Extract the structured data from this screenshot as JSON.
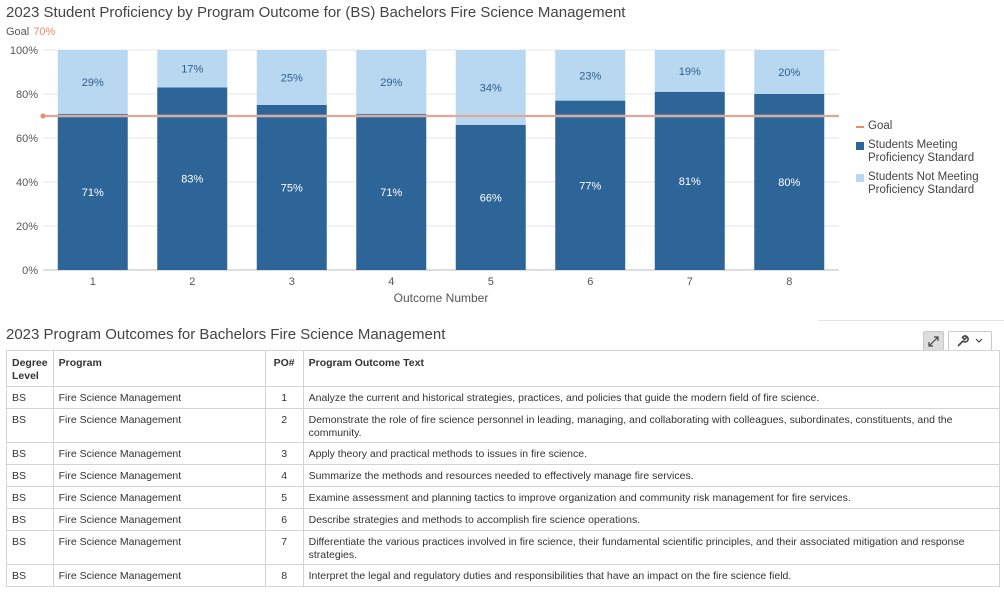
{
  "chart_title": "2023 Student Proficiency by Program Outcome for (BS) Bachelors Fire Science Management",
  "goal": {
    "label": "Goal",
    "value_text": "70%",
    "value": 70
  },
  "colors": {
    "meeting": "#2e6599",
    "not_meeting": "#b8d8f2",
    "goal": "#f0896b",
    "grid": "#e6e6e6"
  },
  "legend": {
    "goal": "Goal",
    "meeting": "Students Meeting Proficiency Standard",
    "not_meeting": "Students Not Meeting Proficiency Standard"
  },
  "chart_data": {
    "type": "bar",
    "stacked": true,
    "categories": [
      "1",
      "2",
      "3",
      "4",
      "5",
      "6",
      "7",
      "8"
    ],
    "series": [
      {
        "name": "Students Meeting Proficiency Standard",
        "values": [
          71,
          83,
          75,
          71,
          66,
          77,
          81,
          80
        ]
      },
      {
        "name": "Students Not Meeting Proficiency Standard",
        "values": [
          29,
          17,
          25,
          29,
          34,
          23,
          19,
          20
        ]
      }
    ],
    "goal_line": 70,
    "xlabel": "Outcome Number",
    "ylabel": "",
    "ylim": [
      0,
      100
    ],
    "yticks": [
      "0%",
      "20%",
      "40%",
      "60%",
      "80%",
      "100%"
    ],
    "legend_position": "right",
    "grid": true
  },
  "table": {
    "title": "2023 Program Outcomes for Bachelors Fire Science Management",
    "headers": {
      "degree": "Degree Level",
      "program": "Program",
      "po": "PO#",
      "text": "Program Outcome Text"
    },
    "rows": [
      {
        "degree": "BS",
        "program": "Fire Science Management",
        "po": "1",
        "text": "Analyze the current and historical strategies, practices, and policies that guide the modern field of fire science."
      },
      {
        "degree": "BS",
        "program": "Fire Science Management",
        "po": "2",
        "text": "Demonstrate the role of fire science personnel in leading, managing, and collaborating with colleagues, subordinates, constituents, and the community."
      },
      {
        "degree": "BS",
        "program": "Fire Science Management",
        "po": "3",
        "text": "Apply theory and practical methods to issues in fire science."
      },
      {
        "degree": "BS",
        "program": "Fire Science Management",
        "po": "4",
        "text": "Summarize the methods and resources needed to effectively manage fire services."
      },
      {
        "degree": "BS",
        "program": "Fire Science Management",
        "po": "5",
        "text": "Examine assessment and planning tactics to improve organization and community risk management for fire services."
      },
      {
        "degree": "BS",
        "program": "Fire Science Management",
        "po": "6",
        "text": "Describe strategies and methods to accomplish fire science operations."
      },
      {
        "degree": "BS",
        "program": "Fire Science Management",
        "po": "7",
        "text": "Differentiate the various practices involved in fire science, their fundamental scientific principles, and their associated mitigation and response strategies."
      },
      {
        "degree": "BS",
        "program": "Fire Science Management",
        "po": "8",
        "text": "Interpret the legal and regulatory duties and responsibilities that have an impact on the fire science field."
      }
    ]
  },
  "toolbar": {
    "expand_icon": "expand-icon",
    "wrench_icon": "wrench-icon",
    "chevron_icon": "chevron-down-icon"
  }
}
